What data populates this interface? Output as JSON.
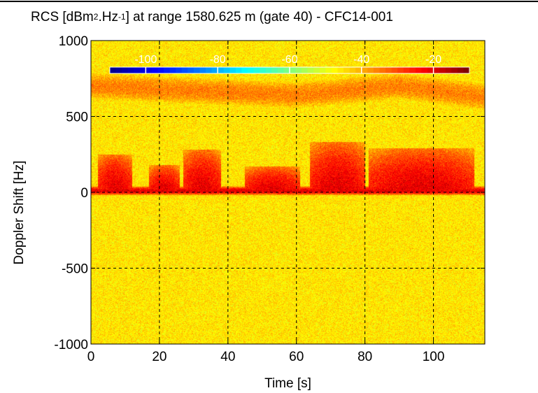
{
  "title": {
    "prefix": "RCS [dBm",
    "sup1": "2",
    "mid": ".Hz",
    "sup2": "-1",
    "suffix": "] at range 1580.625 m (gate 40) - CFC14-001"
  },
  "chart_data": {
    "type": "heatmap",
    "xlabel": "Time [s]",
    "ylabel": "Doppler Shift [Hz]",
    "xlim": [
      0,
      115
    ],
    "ylim": [
      -1000,
      1000
    ],
    "x_ticks": [
      0,
      20,
      40,
      60,
      80,
      100
    ],
    "y_ticks": [
      -1000,
      -500,
      0,
      500,
      1000
    ],
    "grid": true,
    "grid_style": "dashed",
    "colorbar": {
      "placement": "inside-top",
      "ticks": [
        -100,
        -80,
        -60,
        -40,
        -20
      ],
      "range": [
        -110,
        -10
      ],
      "colormap": "jet"
    },
    "background_level_dB": -45,
    "features": [
      {
        "name": "zero-doppler line",
        "doppler_hz": 10,
        "level_dB": -20
      },
      {
        "name": "upper band",
        "doppler_center_hz": [
          700,
          640,
          700,
          630
        ],
        "time_points": [
          0,
          60,
          90,
          115
        ],
        "width_hz": 90,
        "level_dB": -33
      },
      {
        "name": "clutter bursts",
        "doppler_range_hz": [
          0,
          300
        ],
        "bursts_s": [
          [
            2,
            12,
            250
          ],
          [
            17,
            26,
            180
          ],
          [
            27,
            38,
            280
          ],
          [
            45,
            61,
            170
          ],
          [
            64,
            80,
            330
          ],
          [
            81,
            112,
            290
          ]
        ],
        "level_dB": -22
      }
    ],
    "colors": {
      "jet": [
        "#00008f",
        "#0000ff",
        "#007fff",
        "#00ffff",
        "#7fff7f",
        "#ffff00",
        "#ff7f00",
        "#ff0000",
        "#7f0000"
      ]
    }
  }
}
